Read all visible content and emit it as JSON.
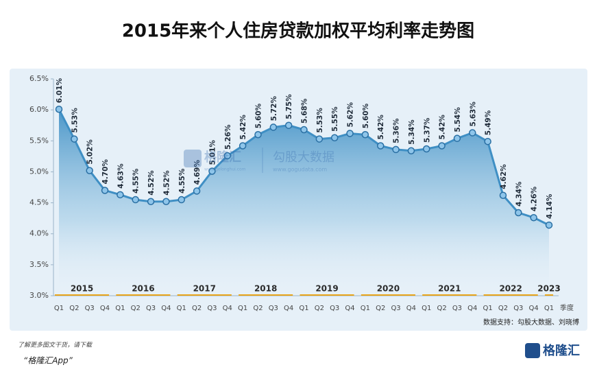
{
  "chart_data": {
    "type": "line",
    "title": "2015年来个人住房贷款加权平均利率走势图",
    "categories": [
      "Q1",
      "Q2",
      "Q3",
      "Q4",
      "Q1",
      "Q2",
      "Q3",
      "Q4",
      "Q1",
      "Q2",
      "Q3",
      "Q4",
      "Q1",
      "Q2",
      "Q3",
      "Q4",
      "Q1",
      "Q2",
      "Q3",
      "Q4",
      "Q1",
      "Q2",
      "Q3",
      "Q4",
      "Q1",
      "Q2",
      "Q3",
      "Q4",
      "Q1",
      "Q2",
      "Q3",
      "Q4",
      "Q1"
    ],
    "values": [
      6.01,
      5.53,
      5.02,
      4.7,
      4.63,
      4.55,
      4.52,
      4.52,
      4.55,
      4.69,
      5.01,
      5.26,
      5.42,
      5.6,
      5.72,
      5.75,
      5.68,
      5.53,
      5.55,
      5.62,
      5.6,
      5.42,
      5.36,
      5.34,
      5.37,
      5.42,
      5.54,
      5.63,
      5.49,
      4.62,
      4.34,
      4.26,
      4.14
    ],
    "value_labels": [
      "6.01%",
      "5.53%",
      "5.02%",
      "4.70%",
      "4.63%",
      "4.55%",
      "4.52%",
      "4.52%",
      "4.55%",
      "4.69%",
      "5.01%",
      "5.26%",
      "5.42%",
      "5.60%",
      "5.72%",
      "5.75%",
      "5.68%",
      "5.53%",
      "5.55%",
      "5.62%",
      "5.60%",
      "5.42%",
      "5.36%",
      "5.34%",
      "5.37%",
      "5.42%",
      "5.54%",
      "5.63%",
      "5.49%",
      "4.62%",
      "4.34%",
      "4.26%",
      "4.14%"
    ],
    "year_groups": [
      {
        "label": "2015",
        "quarters": 4
      },
      {
        "label": "2016",
        "quarters": 4
      },
      {
        "label": "2017",
        "quarters": 4
      },
      {
        "label": "2018",
        "quarters": 4
      },
      {
        "label": "2019",
        "quarters": 4
      },
      {
        "label": "2020",
        "quarters": 4
      },
      {
        "label": "2021",
        "quarters": 4
      },
      {
        "label": "2022",
        "quarters": 4
      },
      {
        "label": "2023",
        "quarters": 1
      }
    ],
    "x_label": "季度",
    "color": "#3f8fc4",
    "ylim": [
      3.0,
      6.5
    ],
    "yticks": [
      {
        "value": 3.0,
        "label": "3.0%"
      },
      {
        "value": 3.5,
        "label": "3.5%"
      },
      {
        "value": 4.0,
        "label": "4.0%"
      },
      {
        "value": 4.5,
        "label": "4.5%"
      },
      {
        "value": 5.0,
        "label": "5.0%"
      },
      {
        "value": 5.5,
        "label": "5.5%"
      },
      {
        "value": 6.0,
        "label": "6.0%"
      },
      {
        "value": 6.5,
        "label": "6.5%"
      }
    ],
    "source": "数据支持：勾股大数据、刘晓博"
  },
  "watermark": {
    "left": "格隆汇",
    "left_url": "www.gelonghui.com",
    "right": "勾股大数据",
    "right_url": "www.gogudata.com"
  },
  "footer": {
    "line1": "了解更多图文干货，请下载",
    "line2": "“格隆汇App”",
    "logo": "格隆汇"
  }
}
